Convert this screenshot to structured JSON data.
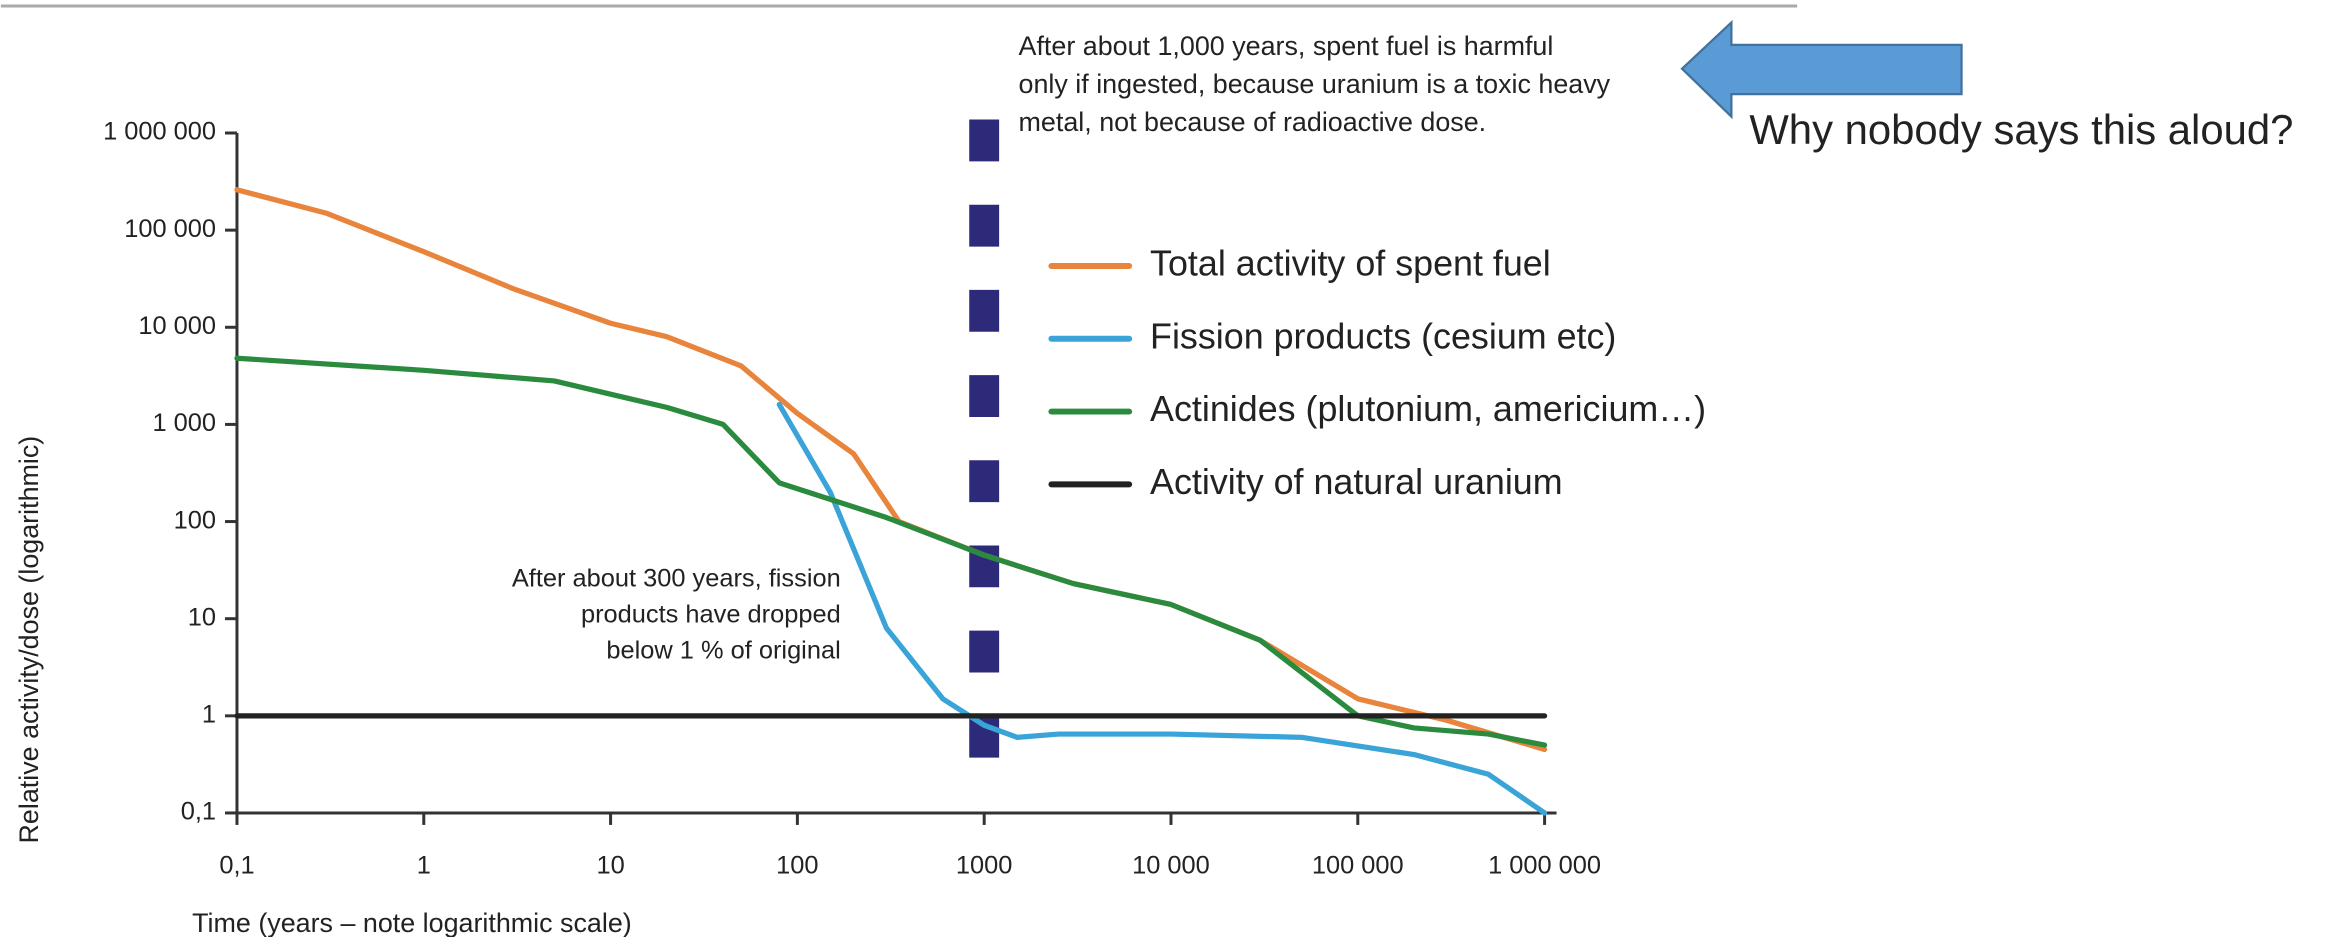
{
  "chart_data": {
    "type": "line",
    "headline": "Why nobody says this aloud?",
    "xlabel": "Time (years – note logarithmic scale)",
    "ylabel": "Relative activity/dose (logarithmic)",
    "xscale": "log",
    "yscale": "log",
    "xlim": [
      0.1,
      1000000
    ],
    "ylim": [
      0.1,
      1000000
    ],
    "xticks": [
      {
        "value": 0.1,
        "label": "0,1"
      },
      1,
      10,
      100,
      1000,
      {
        "value": 10000,
        "label": "10 000"
      },
      {
        "value": 100000,
        "label": "100 000"
      },
      {
        "value": 1000000,
        "label": "1 000 000"
      }
    ],
    "yticks": [
      {
        "value": 0.1,
        "label": "0,1"
      },
      1,
      10,
      100,
      {
        "value": 1000,
        "label": "1 000"
      },
      {
        "value": 10000,
        "label": "10 000"
      },
      {
        "value": 100000,
        "label": "100 000"
      },
      {
        "value": 1000000,
        "label": "1 000 000"
      }
    ],
    "series": [
      {
        "name": "Total activity of spent fuel",
        "color": "#e8843c",
        "x": [
          0.1,
          0.3,
          1,
          3,
          10,
          20,
          50,
          100,
          200,
          350,
          1000,
          3000,
          10000,
          30000,
          100000,
          300000,
          1000000
        ],
        "values": [
          260000,
          150000,
          60000,
          25000,
          11000,
          8000,
          4000,
          1300,
          500,
          100,
          45,
          23,
          14,
          6,
          1.5,
          0.9,
          0.45
        ]
      },
      {
        "name": "Fission products (cesium etc)",
        "color": "#3aa3d8",
        "x": [
          80,
          150,
          300,
          600,
          1000,
          1500,
          2500,
          10000,
          50000,
          200000,
          500000,
          1000000
        ],
        "values": [
          1600,
          200,
          8,
          1.5,
          0.8,
          0.6,
          0.65,
          0.65,
          0.6,
          0.4,
          0.25,
          0.1
        ]
      },
      {
        "name": "Actinides (plutonium, americium…)",
        "color": "#2a8a3e",
        "x": [
          0.1,
          1,
          5,
          20,
          40,
          80,
          300,
          1000,
          3000,
          10000,
          30000,
          100000,
          200000,
          500000,
          1000000
        ],
        "values": [
          4800,
          3600,
          2800,
          1500,
          1000,
          250,
          110,
          45,
          23,
          14,
          6,
          1.0,
          0.75,
          0.65,
          0.5
        ]
      },
      {
        "name": "Activity of natural uranium",
        "color": "#222222",
        "x": [
          0.1,
          1000000
        ],
        "values": [
          1,
          1
        ]
      }
    ],
    "vline": {
      "x": 1000,
      "color": "#2e2a7a"
    },
    "annotations": [
      {
        "lines": [
          "After about 1,000 years, spent fuel is harmful",
          "only if ingested, because uranium is a toxic heavy",
          "metal, not because of radioactive dose."
        ]
      },
      {
        "lines": [
          "After about 300 years, fission",
          "products have dropped",
          "below 1 % of original"
        ]
      }
    ]
  }
}
